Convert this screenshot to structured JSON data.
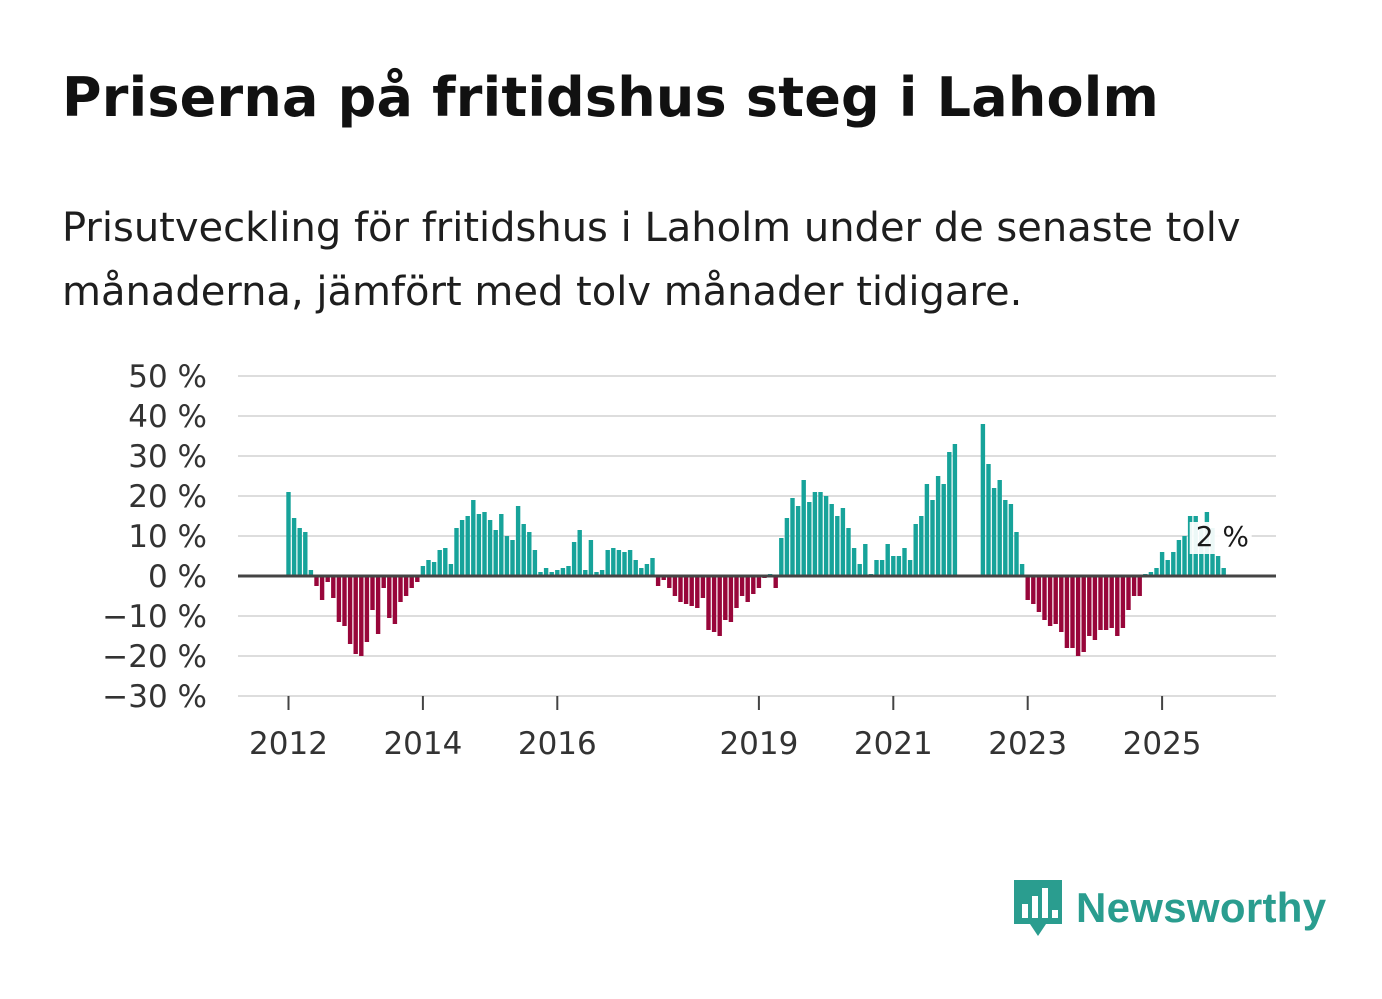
{
  "title": "Priserna på fritidshus steg i Laholm",
  "subtitle": "Prisutveckling för fritidshus i Laholm under de senaste tolv månaderna, jämfört med tolv månader tidigare.",
  "brand": {
    "name": "Newsworthy",
    "icon": "newsworthy-logo-icon",
    "color": "#2a9d8f"
  },
  "colors": {
    "positive": "#17a39a",
    "negative": "#98063a",
    "grid": "#dddddd",
    "zero": "#444444"
  },
  "chart_data": {
    "type": "bar",
    "title": "Priserna på fritidshus steg i Laholm",
    "xlabel": "",
    "ylabel": "",
    "ylim": [
      -30,
      50
    ],
    "yticks": [
      50,
      40,
      30,
      20,
      10,
      0,
      -10,
      -20,
      -30
    ],
    "ytick_labels": [
      "50 %",
      "40 %",
      "30 %",
      "20 %",
      "10 %",
      "0 %",
      "−10 %",
      "−20 %",
      "−30 %"
    ],
    "x_start": "2012-01",
    "xtick_labels": [
      "2012",
      "2014",
      "2016",
      "2019",
      "2021",
      "2023",
      "2025"
    ],
    "xtick_index": [
      0,
      24,
      48,
      84,
      108,
      132,
      156
    ],
    "end_label": "2 %",
    "values": [
      21,
      14.5,
      12,
      11,
      1.5,
      -2.5,
      -6,
      -1.5,
      -5.5,
      -11.5,
      -12.5,
      -17,
      -19.5,
      -20,
      -16.5,
      -8.5,
      -14.5,
      -3,
      -10.5,
      -12,
      -6.5,
      -5,
      -3,
      -1.5,
      2.5,
      4,
      3.5,
      6.5,
      7,
      3,
      12,
      14,
      15,
      19,
      15.5,
      16,
      14,
      11.5,
      15.5,
      10,
      9,
      17.5,
      13,
      11,
      6.5,
      1,
      2,
      1,
      1.5,
      2,
      2.5,
      8.5,
      11.5,
      1.5,
      9,
      1,
      1.5,
      6.5,
      7,
      6.5,
      6,
      6.5,
      4,
      2,
      3,
      4.5,
      -2.5,
      -1,
      -3,
      -5,
      -6.5,
      -7,
      -7.5,
      -8,
      -5.5,
      -13.5,
      -14,
      -15,
      -11,
      -11.5,
      -8,
      -5,
      -6.5,
      -4.5,
      -3,
      -0.5,
      0.5,
      -3,
      9.5,
      14.5,
      19.5,
      17.5,
      24,
      18.5,
      21,
      21,
      20,
      18,
      15,
      17,
      12,
      7,
      3,
      8,
      0.5,
      4,
      4,
      8,
      5,
      5,
      7,
      4,
      13,
      15,
      23,
      19,
      25,
      23,
      31,
      33,
      null,
      null,
      null,
      null,
      38,
      28,
      22,
      24,
      19,
      18,
      11,
      3,
      -6,
      -7,
      -9,
      -11,
      -12.5,
      -12,
      -14,
      -18,
      -18,
      -20,
      -19,
      -15,
      -16,
      -13.5,
      -13.5,
      -13,
      -15,
      -13,
      -8.5,
      -5,
      -5,
      0.5,
      1,
      2,
      6,
      4,
      6,
      9,
      10,
      15,
      15,
      12,
      16,
      12,
      5,
      2
    ]
  }
}
